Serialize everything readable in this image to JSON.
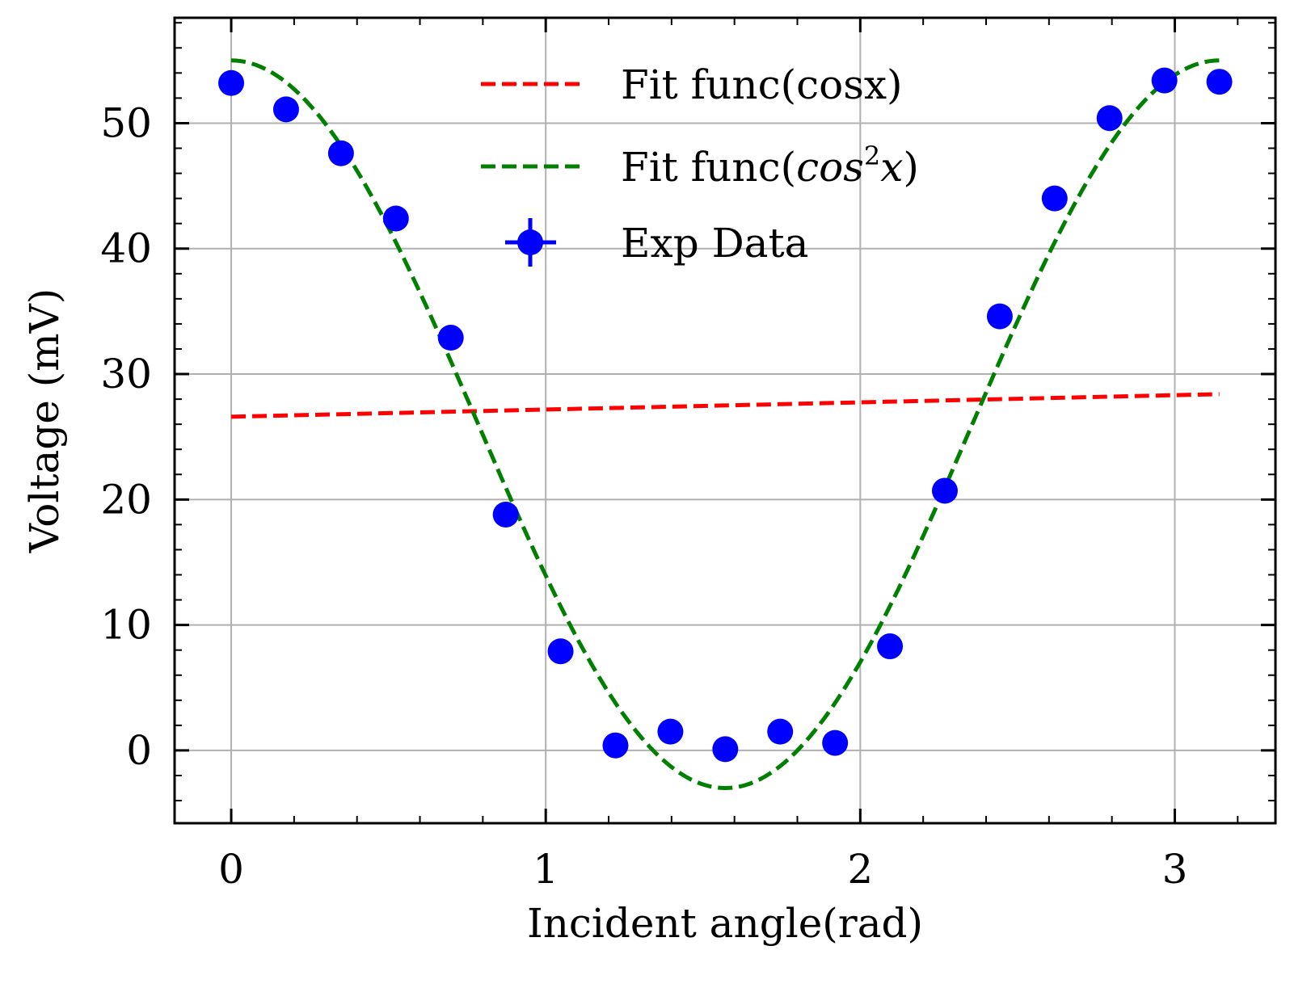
{
  "chart_data": {
    "type": "scatter",
    "xlabel": "Incident angle(rad)",
    "ylabel": "Voltage (mV)",
    "xlim": [
      -0.18,
      3.32
    ],
    "ylim": [
      -5.8,
      58.4
    ],
    "xticks": [
      0,
      1,
      2,
      3
    ],
    "xtick_labels": [
      "0",
      "1",
      "2",
      "3"
    ],
    "yticks": [
      0,
      10,
      20,
      30,
      40,
      50
    ],
    "ytick_labels": [
      "0",
      "10",
      "20",
      "30",
      "40",
      "50"
    ],
    "x_minor_step": 0.2,
    "y_minor_step": 2,
    "grid": true,
    "legend_position": "upper-center",
    "legend": {
      "cos_fit": "Fit func(cosx)",
      "cos2_fit_prefix": "Fit func(",
      "cos2_fit_math": "cos",
      "cos2_fit_exp": "2",
      "cos2_fit_var": "x",
      "cos2_fit_suffix": ")",
      "data": "Exp Data"
    },
    "series": [
      {
        "kind": "dashed-line",
        "color": "#ff0000",
        "x": [
          0,
          3.1416
        ],
        "y": [
          26.6,
          28.4
        ]
      },
      {
        "kind": "dashed-line",
        "color": "#008000",
        "model": "A*cos^2(x)+C",
        "A": 58,
        "C": -3,
        "x_range": [
          0,
          3.1416
        ]
      },
      {
        "kind": "scatter",
        "color": "#0000ff",
        "x": [
          0,
          0.1745,
          0.3491,
          0.5236,
          0.6981,
          0.8727,
          1.0472,
          1.2217,
          1.3963,
          1.5708,
          1.7453,
          1.9199,
          2.0944,
          2.2689,
          2.4435,
          2.618,
          2.7925,
          2.9671,
          3.1416
        ],
        "y": [
          53.2,
          51.1,
          47.6,
          42.4,
          32.9,
          18.8,
          7.9,
          0.4,
          1.5,
          0.1,
          1.5,
          0.6,
          8.3,
          20.7,
          34.6,
          44.0,
          50.4,
          53.4,
          53.3
        ]
      }
    ]
  }
}
